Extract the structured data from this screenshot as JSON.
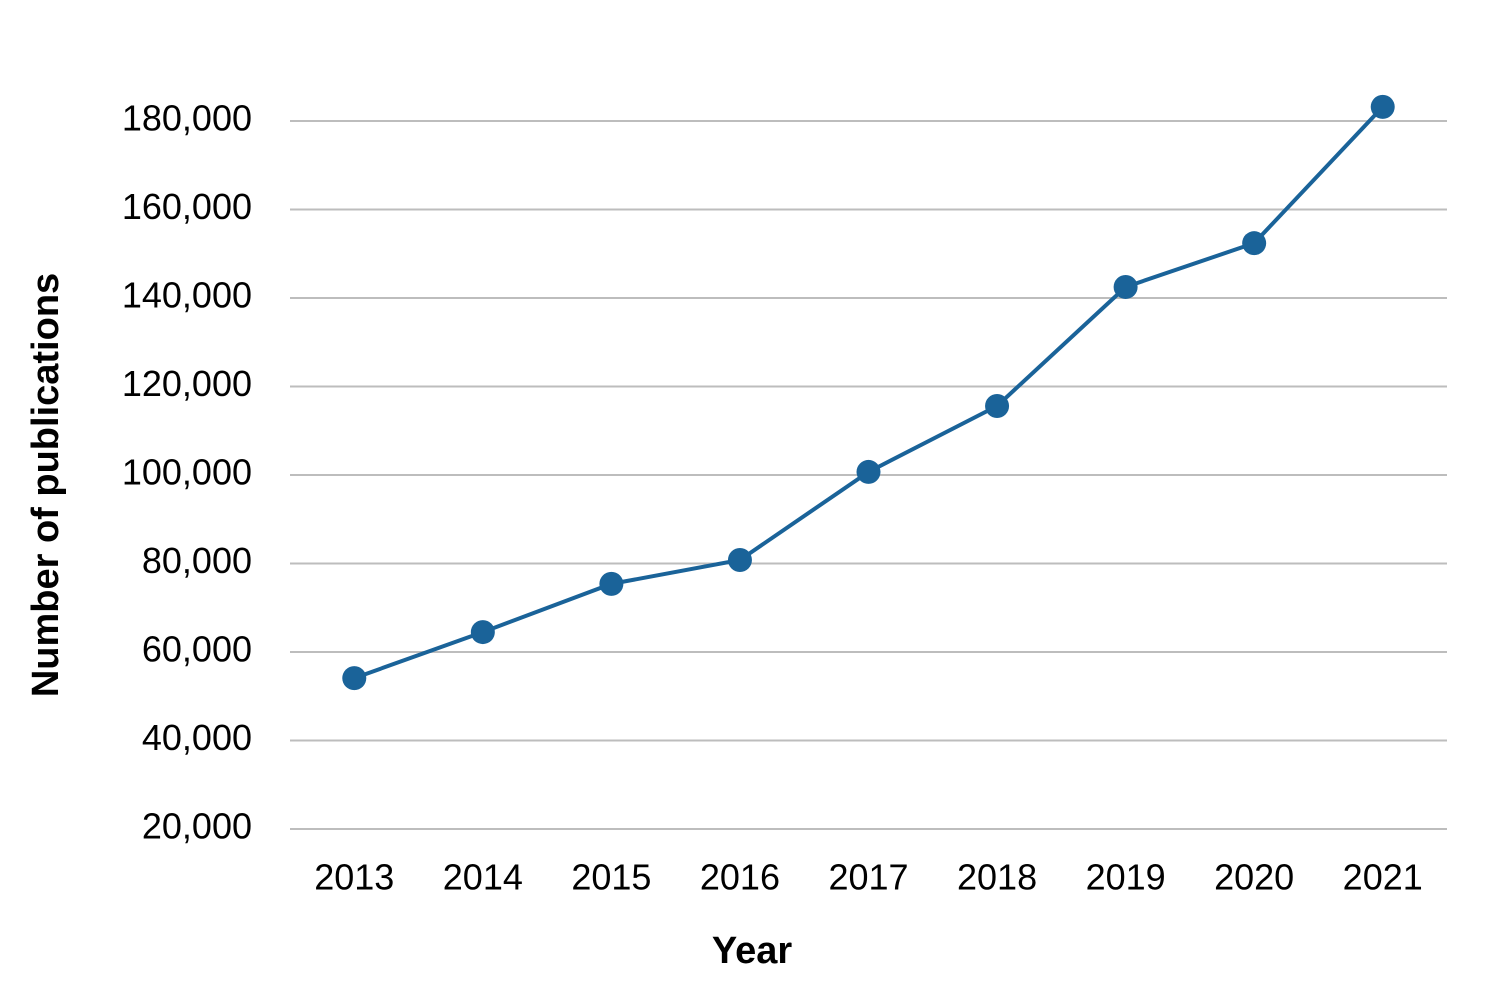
{
  "chart_data": {
    "type": "line",
    "x_label": "Year",
    "y_label": "Number of publications",
    "categories": [
      "2013",
      "2014",
      "2015",
      "2016",
      "2017",
      "2018",
      "2019",
      "2020",
      "2021"
    ],
    "series": [
      {
        "name": "Publications",
        "color": "#1a6399",
        "values": [
          54100,
          64500,
          75400,
          80800,
          100700,
          115600,
          142500,
          152400,
          183200
        ]
      }
    ],
    "ylim": [
      20000,
      186000
    ],
    "yticks": [
      {
        "value": 20000,
        "label": "20,000"
      },
      {
        "value": 40000,
        "label": "40,000"
      },
      {
        "value": 60000,
        "label": "60,000"
      },
      {
        "value": 80000,
        "label": "80,000"
      },
      {
        "value": 100000,
        "label": "100,000"
      },
      {
        "value": 120000,
        "label": "120,000"
      },
      {
        "value": 140000,
        "label": "140,000"
      },
      {
        "value": 160000,
        "label": "160,000"
      },
      {
        "value": 180000,
        "label": "180,000"
      }
    ],
    "grid": true
  }
}
